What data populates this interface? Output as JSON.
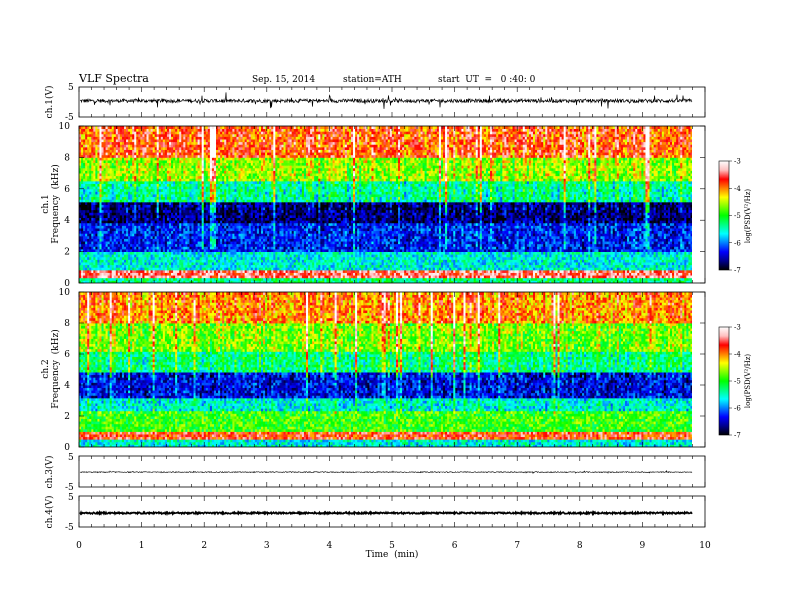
{
  "header": {
    "title": "VLF  Spectra",
    "date": "Sep. 15, 2014",
    "station": "station=ATH",
    "start": "start  UT  =   0 :40: 0"
  },
  "colors": {
    "colormap": [
      "#000000",
      "#00008b",
      "#0000ff",
      "#0080ff",
      "#00ffff",
      "#00ff80",
      "#00ff00",
      "#80ff00",
      "#ffff00",
      "#ff8000",
      "#ff0000",
      "#ffc0c0",
      "#ffffff"
    ]
  },
  "chart_data": [
    {
      "type": "line",
      "panel": "ch1-waveform",
      "ylabel": "ch.1(V)",
      "yticks": [
        "5",
        "-5"
      ],
      "ylim": [
        -5,
        5
      ],
      "xlim": [
        0,
        10
      ],
      "baseline": 0.4,
      "noise_amplitude": 0.6,
      "spike_amplitude": 2.5,
      "x_end": 9.8
    },
    {
      "type": "heatmap",
      "panel": "ch1-spectrogram",
      "ylabel_channel": "ch.1",
      "ylabel": "Frequency  (kHz)",
      "yticks": [
        "0",
        "2",
        "4",
        "6",
        "8",
        "10"
      ],
      "ylim": [
        0,
        10
      ],
      "xlim": [
        0,
        10
      ],
      "x_end": 9.8,
      "z_unit": "log(PSD(V²/Hz)",
      "zlim": [
        -7,
        -3
      ],
      "zticks": [
        "-3",
        "-4",
        "-5",
        "-6",
        "-7"
      ],
      "bands_khz": [
        {
          "from": 0.0,
          "to": 0.4,
          "log_psd": -5.3
        },
        {
          "from": 0.4,
          "to": 0.8,
          "log_psd": -3.5
        },
        {
          "from": 0.8,
          "to": 2.0,
          "log_psd": -5.6
        },
        {
          "from": 2.0,
          "to": 3.8,
          "log_psd": -6.3
        },
        {
          "from": 3.8,
          "to": 5.2,
          "log_psd": -6.7
        },
        {
          "from": 5.2,
          "to": 6.5,
          "log_psd": -5.4
        },
        {
          "from": 6.5,
          "to": 8.0,
          "log_psd": -4.6
        },
        {
          "from": 8.0,
          "to": 10.0,
          "log_psd": -3.8
        }
      ]
    },
    {
      "type": "heatmap",
      "panel": "ch2-spectrogram",
      "ylabel_channel": "ch.2",
      "ylabel": "Frequency  (kHz)",
      "yticks": [
        "0",
        "2",
        "4",
        "6",
        "8",
        "10"
      ],
      "ylim": [
        0,
        10
      ],
      "xlim": [
        0,
        10
      ],
      "x_end": 9.8,
      "z_unit": "log(PSD(V²/Hz)",
      "zlim": [
        -7,
        -3
      ],
      "zticks": [
        "-3",
        "-4",
        "-5",
        "-6",
        "-7"
      ],
      "bands_khz": [
        {
          "from": 0.0,
          "to": 0.5,
          "log_psd": -5.6
        },
        {
          "from": 0.5,
          "to": 1.0,
          "log_psd": -3.7
        },
        {
          "from": 1.0,
          "to": 2.4,
          "log_psd": -4.9
        },
        {
          "from": 2.4,
          "to": 3.2,
          "log_psd": -5.6
        },
        {
          "from": 3.2,
          "to": 4.8,
          "log_psd": -6.4
        },
        {
          "from": 4.8,
          "to": 6.2,
          "log_psd": -5.3
        },
        {
          "from": 6.2,
          "to": 8.0,
          "log_psd": -4.7
        },
        {
          "from": 8.0,
          "to": 10.0,
          "log_psd": -4.0
        }
      ]
    },
    {
      "type": "line",
      "panel": "ch3-waveform",
      "ylabel": "ch.3(V)",
      "yticks": [
        "5",
        "-5"
      ],
      "ylim": [
        -5,
        5
      ],
      "xlim": [
        0,
        10
      ],
      "baseline": -0.2,
      "noise_amplitude": 0.15,
      "spike_amplitude": 0.3,
      "x_end": 9.8
    },
    {
      "type": "line",
      "panel": "ch4-waveform",
      "ylabel": "ch.4(V)",
      "yticks": [
        "5",
        "-5"
      ],
      "ylim": [
        -5,
        5
      ],
      "xlim": [
        0,
        10
      ],
      "baseline": -0.5,
      "noise_amplitude": 0.25,
      "spike_amplitude": 0.0,
      "x_end": 9.8
    }
  ],
  "xaxis": {
    "label": "Time  (min)",
    "ticks": [
      "0",
      "1",
      "2",
      "3",
      "4",
      "5",
      "6",
      "7",
      "8",
      "9",
      "10"
    ]
  }
}
